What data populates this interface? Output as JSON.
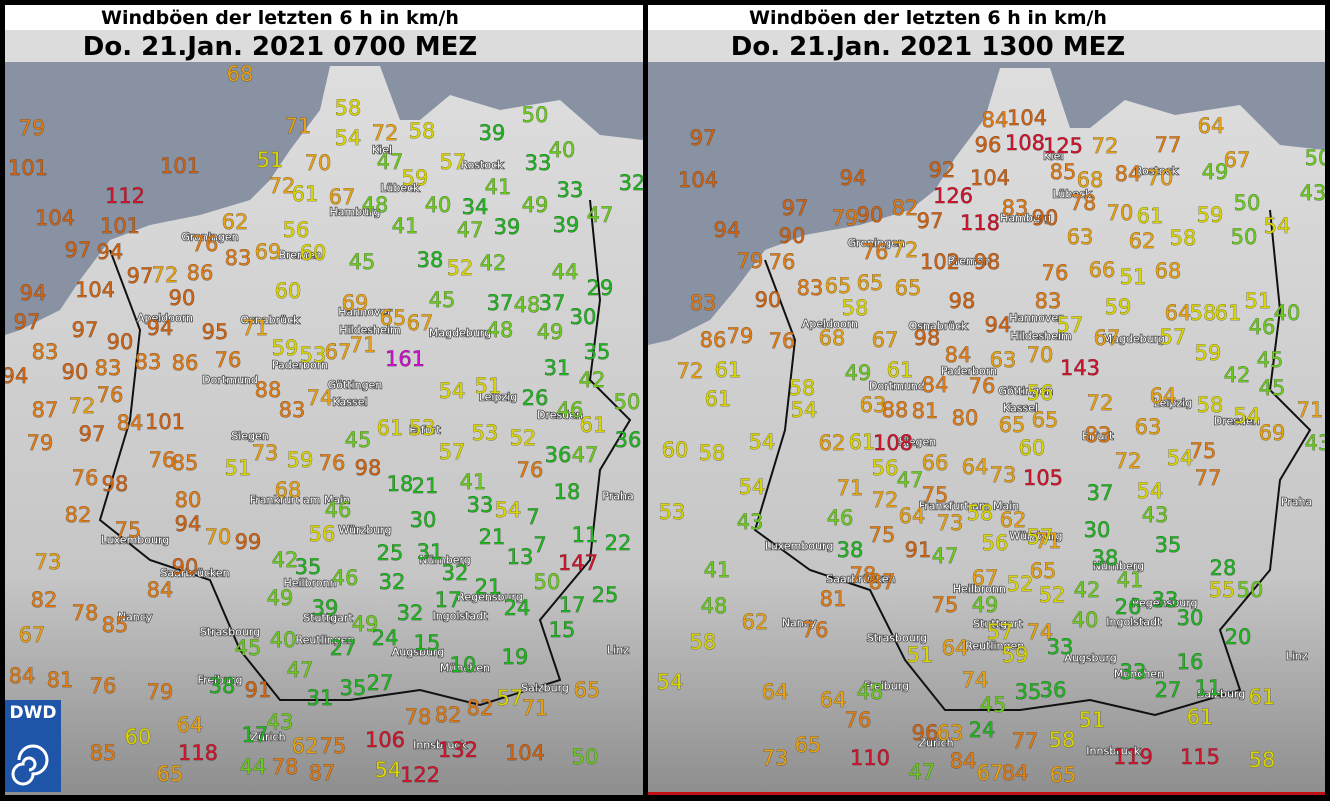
{
  "panels": [
    {
      "title": "Windböen der letzten 6 h in km/h",
      "subtitle": "Do. 21.Jan. 2021 0700 MEZ",
      "stations": [
        79,
        101,
        112,
        101,
        104,
        101,
        97,
        94,
        94,
        104,
        97,
        72,
        86,
        90,
        97,
        97,
        90,
        83,
        94,
        95,
        71,
        83,
        86,
        76,
        90,
        94,
        83,
        87,
        72,
        76,
        97,
        79,
        84,
        101,
        88,
        83,
        74,
        76,
        85,
        98,
        76,
        82,
        80,
        94,
        75,
        70,
        99,
        73,
        90,
        84,
        82,
        78,
        85,
        67,
        84,
        81,
        76,
        79,
        60,
        85,
        118,
        65,
        64,
        91,
        68,
        71,
        58,
        54,
        72,
        58,
        51,
        70,
        72,
        61,
        67,
        62,
        76,
        83,
        69,
        56,
        60,
        45,
        60,
        69,
        65,
        67,
        71,
        59,
        53,
        67,
        161,
        54,
        61,
        53,
        45,
        57,
        53,
        52,
        76,
        98,
        59,
        73,
        51,
        68,
        46,
        56,
        18,
        21,
        41,
        33,
        54,
        76,
        36,
        47,
        18,
        30,
        21,
        7,
        7,
        11,
        22,
        25,
        31,
        32,
        13,
        147,
        50,
        32,
        21,
        17,
        24,
        17,
        25,
        32,
        49,
        24,
        15,
        15,
        49,
        46,
        39,
        42,
        35,
        45,
        40,
        47,
        27,
        10,
        19,
        27,
        35,
        31,
        38,
        17,
        43,
        44,
        78,
        62,
        75,
        87,
        106,
        54,
        122,
        78,
        82,
        82,
        57,
        71,
        132,
        104,
        65,
        50,
        39,
        50,
        57,
        59,
        47,
        33,
        40,
        41,
        33,
        47,
        48,
        40,
        34,
        49,
        41,
        47,
        39,
        39,
        38,
        52,
        42,
        44,
        29,
        45,
        37,
        48,
        37,
        48,
        49,
        30,
        31,
        35,
        42,
        51,
        26,
        46,
        61,
        50,
        36,
        32
      ],
      "cities": [
        "Kiel",
        "Lübeck",
        "Hamburg",
        "Rostock",
        "Groningen",
        "Bremen",
        "Osnabrück",
        "Hannover",
        "Hildesheim",
        "Magdeburg",
        "Paderborn",
        "Dortmund",
        "Göttingen",
        "Kassel",
        "Leipzig",
        "Dresden",
        "Siegen",
        "Erfurt",
        "Frankfurt am Main",
        "Würzburg",
        "Nürnberg",
        "Praha",
        "Luxembourg",
        "Saarbrücken",
        "Heilbronn",
        "Regensburg",
        "Stuttgart",
        "Strasbourg",
        "Ingolstadt",
        "Reutlingen",
        "Augsburg",
        "München",
        "Freiburg",
        "Salzburg",
        "Zürich",
        "Innsbruck",
        "Linz",
        "Apeldoorn",
        "Nancy"
      ]
    },
    {
      "title": "Windböen der letzten 6 h in km/h",
      "subtitle": "Do. 21.Jan. 2021 1300 MEZ",
      "stations": [
        97,
        104,
        94,
        92,
        126,
        118,
        104,
        96,
        84,
        104,
        108,
        125,
        72,
        77,
        64,
        67,
        50,
        43,
        85,
        68,
        84,
        70,
        49,
        97,
        79,
        90,
        82,
        97,
        83,
        90,
        78,
        70,
        61,
        59,
        50,
        54,
        94,
        90,
        63,
        62,
        58,
        50,
        79,
        76,
        76,
        72,
        102,
        98,
        76,
        66,
        51,
        68,
        83,
        90,
        83,
        65,
        65,
        65,
        98,
        83,
        59,
        64,
        58,
        61,
        51,
        46,
        40,
        58,
        86,
        79,
        76,
        68,
        67,
        98,
        94,
        57,
        67,
        57,
        84,
        63,
        70,
        143,
        59,
        45,
        72,
        61,
        49,
        61,
        84,
        76,
        56,
        42,
        45,
        61,
        58,
        54,
        63,
        88,
        81,
        80,
        65,
        65,
        72,
        64,
        58,
        54,
        69,
        71,
        63,
        60,
        58,
        54,
        62,
        61,
        108,
        66,
        64,
        73,
        105,
        60,
        83,
        72,
        54,
        75,
        77,
        43,
        56,
        47,
        54,
        71,
        72,
        75,
        37,
        54,
        53,
        43,
        46,
        75,
        64,
        73,
        58,
        62,
        57,
        43,
        30,
        91,
        47,
        56,
        71,
        35,
        38,
        38,
        78,
        87,
        41,
        67,
        52,
        65,
        41,
        28,
        55,
        50,
        81,
        52,
        42,
        26,
        33,
        30,
        48,
        75,
        49,
        62,
        76,
        40,
        57,
        74,
        58,
        64,
        51,
        59,
        33,
        20,
        16,
        54,
        64,
        64,
        48,
        74,
        45,
        35,
        36,
        33,
        27,
        11,
        61,
        76,
        96,
        63,
        24,
        51,
        61,
        73,
        65,
        110,
        47,
        84,
        67,
        84,
        77,
        58,
        65,
        119,
        115,
        58
      ],
      "cities": [
        "Kiel",
        "Lübeck",
        "Hamburg",
        "Rostock",
        "Groningen",
        "Bremen",
        "Osnabrück",
        "Hannover",
        "Hildesheim",
        "Magdeburg",
        "Paderborn",
        "Dortmund",
        "Göttingen",
        "Kassel",
        "Leipzig",
        "Dresden",
        "Siegen",
        "Erfurt",
        "Frankfurt am Main",
        "Würzburg",
        "Nürnberg",
        "Praha",
        "Luxembourg",
        "Saarbrücken",
        "Heilbronn",
        "Regensburg",
        "Stuttgart",
        "Strasbourg",
        "Ingolstadt",
        "Reutlingen",
        "Augsburg",
        "München",
        "Freiburg",
        "Salzburg",
        "Zürich",
        "Innsbruck",
        "Linz",
        "Apeldoorn",
        "Nancy"
      ]
    }
  ],
  "logo": "DWD",
  "color_scale": [
    {
      "min": 0,
      "color": "#1fb51f"
    },
    {
      "min": 40,
      "color": "#6acb1c"
    },
    {
      "min": 51,
      "color": "#d9d400"
    },
    {
      "min": 62,
      "color": "#e6a010"
    },
    {
      "min": 75,
      "color": "#e07a12"
    },
    {
      "min": 89,
      "color": "#cf6210"
    },
    {
      "min": 105,
      "color": "#d0142c"
    },
    {
      "min": 150,
      "color": "#cc10cc"
    }
  ]
}
